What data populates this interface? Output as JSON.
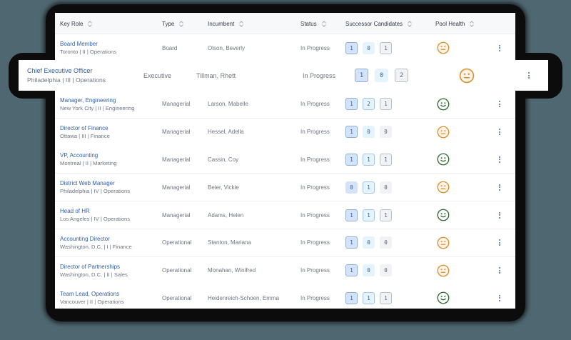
{
  "table": {
    "columns": [
      {
        "label": "Key Role",
        "sortable": true
      },
      {
        "label": "Type",
        "sortable": true
      },
      {
        "label": "Incumbent",
        "sortable": true
      },
      {
        "label": "Status",
        "sortable": true
      },
      {
        "label": "Successor Candidates",
        "sortable": true
      },
      {
        "label": "Pool Health",
        "sortable": true
      }
    ],
    "rows": [
      {
        "title": "Board Member",
        "subtitle": "Toronto | II | Operations",
        "type": "Board",
        "incumbent": "Olson, Beverly",
        "status": "In Progress",
        "candidates": [
          "1",
          "0",
          "1"
        ],
        "health": "neutral"
      },
      {
        "title": "Chief Executive Officer",
        "subtitle": "Philadelphia | III | Operations",
        "type": "Executive",
        "incumbent": "Tillman, Rhett",
        "status": "In Progress",
        "candidates": [
          "1",
          "0",
          "2"
        ],
        "health": "neutral",
        "highlighted": true
      },
      {
        "title": "Manager, Engineering",
        "subtitle": "New York City | II | Engineering",
        "type": "Managerial",
        "incumbent": "Larson, Mabelle",
        "status": "In Progress",
        "candidates": [
          "1",
          "2",
          "1"
        ],
        "health": "good"
      },
      {
        "title": "Director of Finance",
        "subtitle": "Ottawa | III | Finance",
        "type": "Managerial",
        "incumbent": "Hessel, Adella",
        "status": "In Progress",
        "candidates": [
          "1",
          "0",
          "0"
        ],
        "health": "neutral"
      },
      {
        "title": "VP, Accounting",
        "subtitle": "Montreal | II | Marketing",
        "type": "Managerial",
        "incumbent": "Cassin, Coy",
        "status": "In Progress",
        "candidates": [
          "1",
          "1",
          "1"
        ],
        "health": "good"
      },
      {
        "title": "District Web Manager",
        "subtitle": "Philadelphia | IV | Operations",
        "type": "Managerial",
        "incumbent": "Beier, Vickie",
        "status": "In Progress",
        "candidates": [
          "0",
          "1",
          "0"
        ],
        "health": "neutral"
      },
      {
        "title": "Head of HR",
        "subtitle": "Los Angeles | IV | Operations",
        "type": "Managerial",
        "incumbent": "Adams, Helen",
        "status": "In Progress",
        "candidates": [
          "1",
          "1",
          "1"
        ],
        "health": "good"
      },
      {
        "title": "Accounting Director",
        "subtitle": "Washington, D.C. | I | Finance",
        "type": "Operational",
        "incumbent": "Stanton, Mariana",
        "status": "In Progress",
        "candidates": [
          "1",
          "0",
          "0"
        ],
        "health": "neutral"
      },
      {
        "title": "Director of Partnerships",
        "subtitle": "Washington, D.C. | II | Sales",
        "type": "Operational",
        "incumbent": "Monahan, Winifred",
        "status": "In Progress",
        "candidates": [
          "1",
          "0",
          "0"
        ],
        "health": "neutral"
      },
      {
        "title": "Team Lead, Operations",
        "subtitle": "Vancouver | II | Operations",
        "type": "Operational",
        "incumbent": "Heidenreich-Schoen, Emma",
        "status": "In Progress",
        "candidates": [
          "1",
          "1",
          "1"
        ],
        "health": "good"
      }
    ]
  },
  "icons": {
    "sort": "sort-icon",
    "health_neutral": "neutral-face-icon",
    "health_good": "smiley-face-icon",
    "row_menu": "kebab-menu-icon"
  },
  "colors": {
    "background": "#4f6771",
    "link": "#2f5ea8",
    "health_good": "#2e6b2e",
    "health_neutral": "#d9912f",
    "badge_primary": "#d4e3fa",
    "badge_secondary": "#e5f3fd",
    "badge_tertiary": "#f0f2f5"
  }
}
